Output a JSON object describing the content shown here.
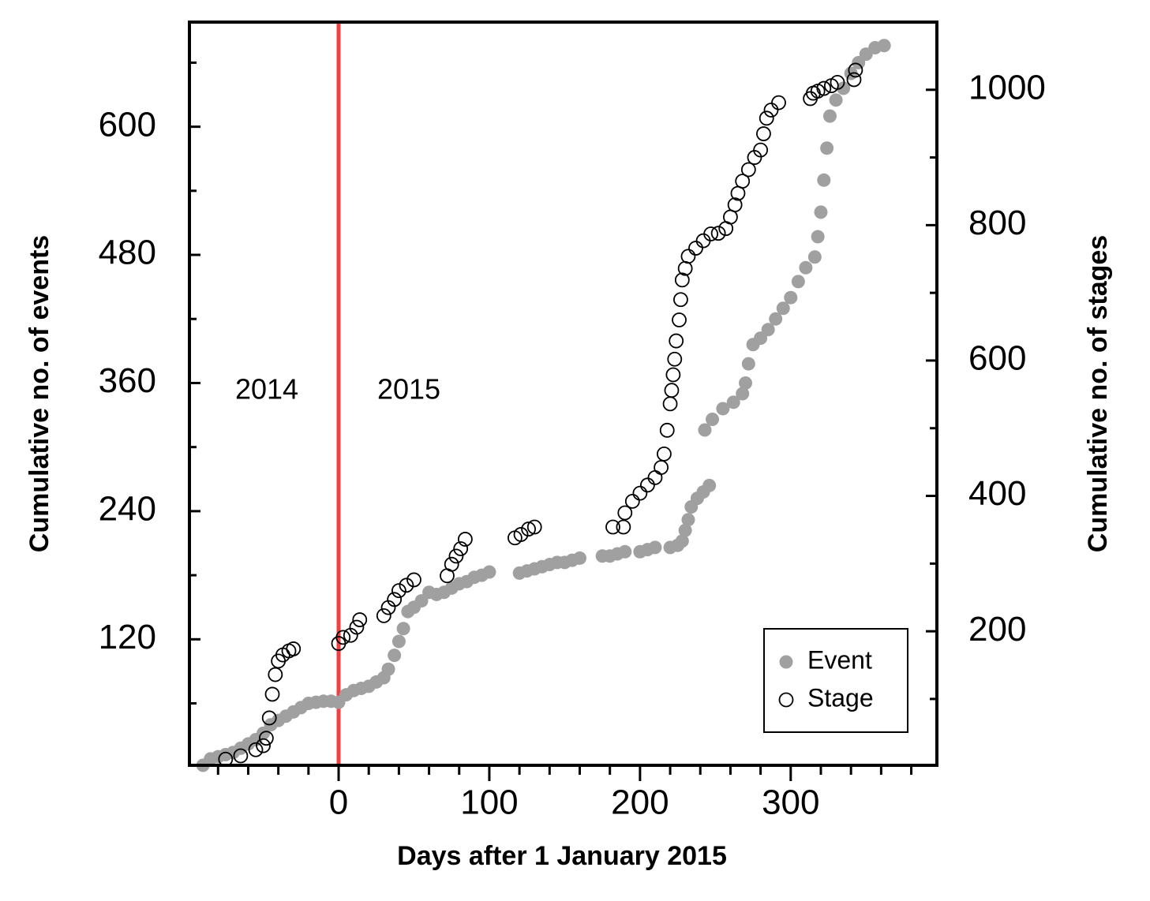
{
  "chart_data": {
    "type": "scatter",
    "xlabel": "Days after 1 January 2015",
    "ylabel": "Cumulative no. of events",
    "y2label": "Cumulative no. of stages",
    "xlim": [
      -99,
      397
    ],
    "xticks": [
      0,
      100,
      200,
      300
    ],
    "xminorticks": [
      -80,
      -60,
      -40,
      -20,
      20,
      40,
      60,
      80,
      120,
      140,
      160,
      180,
      220,
      240,
      260,
      280,
      320,
      340,
      360,
      380
    ],
    "ylim": [
      2,
      698
    ],
    "yticks": [
      120,
      240,
      360,
      480,
      600
    ],
    "yminorticks": [
      60,
      180,
      300,
      420,
      540,
      660
    ],
    "y2lim": [
      2,
      1100
    ],
    "y2ticks": [
      200,
      400,
      600,
      800,
      1000
    ],
    "y2minorticks": [
      100,
      300,
      500,
      700,
      900
    ],
    "vline": {
      "x": 0,
      "color": "#f04040"
    },
    "annotations": [
      "2014",
      "2015"
    ],
    "legend": "lower right",
    "series": [
      {
        "name": "Event",
        "color": "#a0a0a0",
        "marker": "filled",
        "x": [
          -90,
          -85,
          -80,
          -75,
          -70,
          -65,
          -60,
          -55,
          -50,
          -45,
          -40,
          -35,
          -30,
          -25,
          -20,
          -15,
          -10,
          -5,
          0,
          5,
          10,
          15,
          20,
          25,
          30,
          33,
          37,
          40,
          43,
          46,
          50,
          55,
          60,
          65,
          70,
          75,
          80,
          85,
          90,
          95,
          100,
          120,
          125,
          130,
          135,
          140,
          145,
          150,
          155,
          160,
          175,
          180,
          185,
          190,
          200,
          205,
          210,
          220,
          225,
          228,
          230,
          232,
          234,
          238,
          242,
          246,
          243,
          248,
          255,
          262,
          268,
          270,
          272,
          275,
          280,
          285,
          290,
          295,
          300,
          305,
          310,
          316,
          318,
          320,
          322,
          324,
          326,
          330,
          335,
          340,
          345,
          350,
          356,
          362
        ],
        "values": [
          2,
          8,
          10,
          12,
          14,
          18,
          22,
          26,
          32,
          40,
          44,
          48,
          52,
          56,
          60,
          61,
          62,
          62,
          61,
          68,
          72,
          74,
          76,
          80,
          84,
          92,
          105,
          118,
          130,
          146,
          150,
          156,
          164,
          162,
          164,
          168,
          172,
          174,
          178,
          180,
          183,
          182,
          184,
          186,
          188,
          190,
          192,
          192,
          194,
          196,
          198,
          198,
          200,
          202,
          202,
          204,
          206,
          206,
          208,
          212,
          222,
          232,
          244,
          252,
          258,
          264,
          316,
          326,
          336,
          342,
          350,
          360,
          378,
          396,
          402,
          410,
          420,
          430,
          440,
          455,
          468,
          478,
          497,
          520,
          550,
          580,
          610,
          625,
          636,
          650,
          660,
          668,
          674,
          676
        ]
      },
      {
        "name": "Stage",
        "color": "#000000",
        "marker": "open",
        "axis": "y2",
        "x": [
          -75,
          -65,
          -55,
          -50,
          -48,
          -46,
          -44,
          -42,
          -40,
          -37,
          -33,
          -30,
          0,
          3,
          8,
          12,
          14,
          30,
          33,
          37,
          40,
          45,
          50,
          72,
          75,
          78,
          81,
          84,
          117,
          121,
          126,
          130,
          182,
          189,
          190,
          195,
          200,
          205,
          210,
          214,
          216,
          218,
          220,
          221,
          222,
          223,
          224,
          226,
          227,
          228,
          230,
          232,
          237,
          242,
          247,
          252,
          257,
          260,
          263,
          265,
          268,
          272,
          276,
          280,
          282,
          284,
          287,
          292,
          313,
          315,
          318,
          322,
          327,
          331,
          342,
          343
        ],
        "values": [
          11,
          16,
          25,
          31,
          42,
          72,
          107,
          136,
          156,
          165,
          171,
          174,
          182,
          191,
          194,
          206,
          217,
          223,
          235,
          247,
          260,
          268,
          276,
          282,
          299,
          311,
          322,
          336,
          338,
          343,
          351,
          354,
          354,
          354,
          375,
          392,
          404,
          416,
          427,
          442,
          462,
          497,
          536,
          556,
          579,
          602,
          629,
          660,
          690,
          719,
          736,
          754,
          766,
          777,
          787,
          788,
          795,
          812,
          830,
          847,
          865,
          882,
          900,
          911,
          935,
          958,
          970,
          981,
          987,
          995,
          998,
          1002,
          1006,
          1011,
          1015,
          1029
        ]
      }
    ]
  }
}
